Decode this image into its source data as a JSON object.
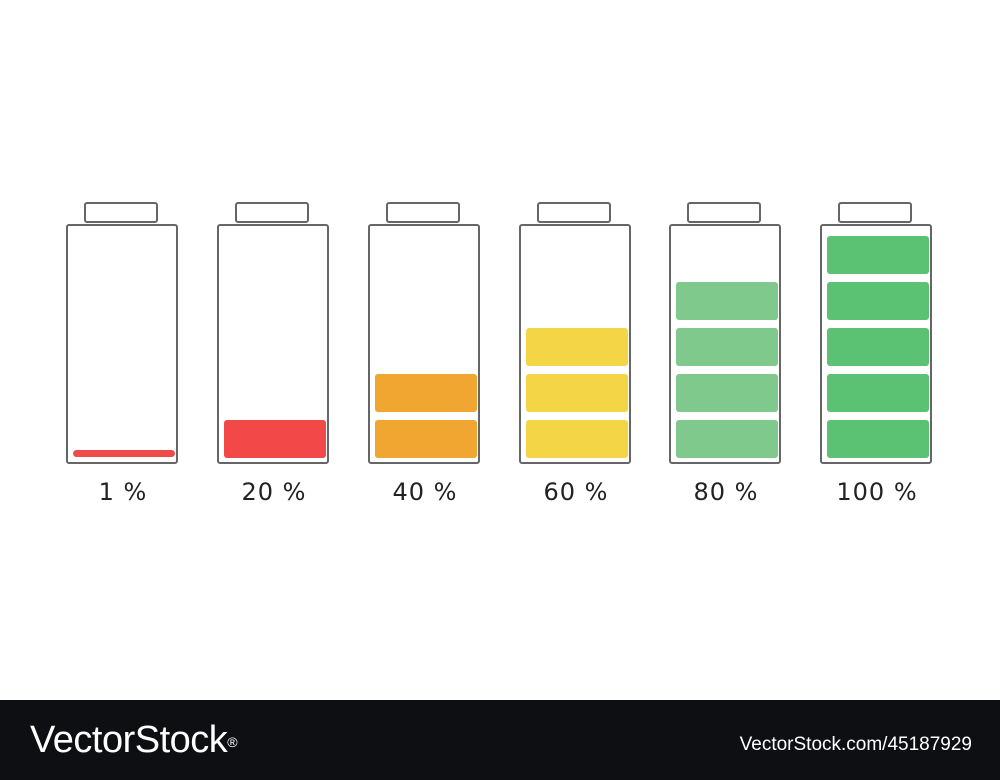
{
  "batteries": [
    {
      "label": "1 %",
      "level": 0.01,
      "segments": 0,
      "color": "#ef4b4b"
    },
    {
      "label": "20 %",
      "level": 0.2,
      "segments": 1,
      "color": "#f24848"
    },
    {
      "label": "40 %",
      "level": 0.4,
      "segments": 2,
      "color": "#f0a630"
    },
    {
      "label": "60 %",
      "level": 0.6,
      "segments": 3,
      "color": "#f3d545"
    },
    {
      "label": "80 %",
      "level": 0.8,
      "segments": 4,
      "color": "#80c98c"
    },
    {
      "label": "100 %",
      "level": 1.0,
      "segments": 5,
      "color": "#5cc273"
    }
  ],
  "outline_color": "#666666",
  "footer": {
    "brand": "VectorStock",
    "registered_mark": "®",
    "image_id": "VectorStock.com/45187929"
  }
}
